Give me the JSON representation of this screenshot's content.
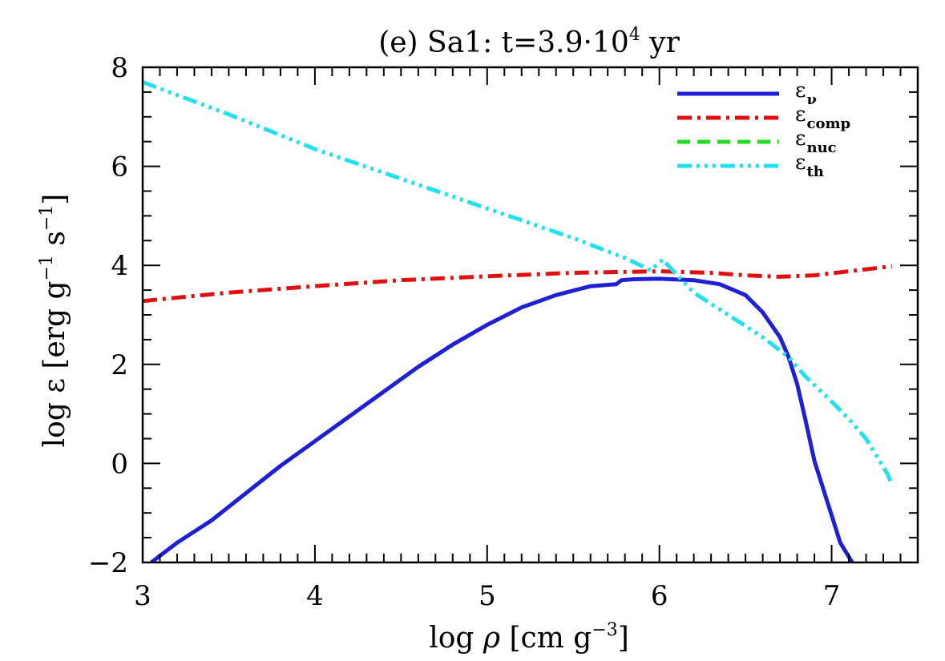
{
  "chart_data": {
    "type": "line",
    "title_main": "(e) Sa1: t=3.9·10",
    "title_exp": "4",
    "title_unit": " yr",
    "xlabel": {
      "prefix": "log ",
      "symbol": "ρ",
      "unit": " [cm g",
      "exp": "−3",
      "close": "]"
    },
    "ylabel": {
      "prefix": "log ε [erg g",
      "exp1": "−1",
      "mid": " s",
      "exp2": "−1",
      "close": "]"
    },
    "xlim": [
      3,
      7.5
    ],
    "ylim": [
      -2,
      8
    ],
    "xticks": [
      3,
      4,
      5,
      6,
      7
    ],
    "yticks": [
      -2,
      0,
      2,
      4,
      6,
      8
    ],
    "xtick_labels": [
      "3",
      "4",
      "5",
      "6",
      "7"
    ],
    "ytick_labels": [
      "−2",
      "0",
      "2",
      "4",
      "6",
      "8"
    ],
    "legend_position": "top-right",
    "series": [
      {
        "name": "εν",
        "symbol": "ε",
        "sub": "ν",
        "color": "#1f1fd6",
        "style": "solid",
        "x": [
          3.05,
          3.2,
          3.4,
          3.6,
          3.8,
          4.0,
          4.2,
          4.4,
          4.6,
          4.8,
          5.0,
          5.2,
          5.4,
          5.6,
          5.75,
          5.78,
          5.85,
          6.0,
          6.2,
          6.35,
          6.5,
          6.6,
          6.7,
          6.75,
          6.8,
          6.85,
          6.9,
          6.95,
          7.0,
          7.05,
          7.12
        ],
        "y": [
          -2.0,
          -1.6,
          -1.15,
          -0.6,
          -0.05,
          0.45,
          0.95,
          1.45,
          1.95,
          2.4,
          2.8,
          3.15,
          3.4,
          3.58,
          3.62,
          3.7,
          3.72,
          3.73,
          3.7,
          3.62,
          3.4,
          3.05,
          2.55,
          2.15,
          1.6,
          0.85,
          0.05,
          -0.5,
          -1.05,
          -1.6,
          -2.0
        ]
      },
      {
        "name": "εcomp",
        "symbol": "ε",
        "sub": "comp",
        "color": "#e01010",
        "style": "dash-dot",
        "x": [
          3.0,
          3.5,
          4.0,
          4.5,
          5.0,
          5.5,
          6.0,
          6.3,
          6.5,
          6.7,
          6.9,
          7.1,
          7.35
        ],
        "y": [
          3.28,
          3.45,
          3.58,
          3.7,
          3.78,
          3.85,
          3.88,
          3.85,
          3.8,
          3.77,
          3.8,
          3.88,
          3.98
        ]
      },
      {
        "name": "εnuc",
        "symbol": "ε",
        "sub": "nuc",
        "color": "#22dd22",
        "style": "dashed",
        "x": [],
        "y": []
      },
      {
        "name": "εth",
        "symbol": "ε",
        "sub": "th",
        "color": "#22e0f0",
        "style": "dash-dot-dot-dot",
        "x": [
          3.0,
          3.5,
          4.0,
          4.5,
          5.0,
          5.5,
          5.8,
          5.95,
          6.02,
          6.05,
          6.2,
          6.4,
          6.6,
          6.75,
          6.85,
          7.0,
          7.1,
          7.2,
          7.28,
          7.33,
          7.35
        ],
        "y": [
          7.7,
          7.05,
          6.35,
          5.75,
          5.15,
          4.55,
          4.15,
          3.9,
          4.12,
          4.0,
          3.45,
          3.0,
          2.55,
          2.15,
          1.75,
          1.25,
          0.9,
          0.5,
          0.05,
          -0.25,
          -0.45
        ]
      }
    ]
  }
}
